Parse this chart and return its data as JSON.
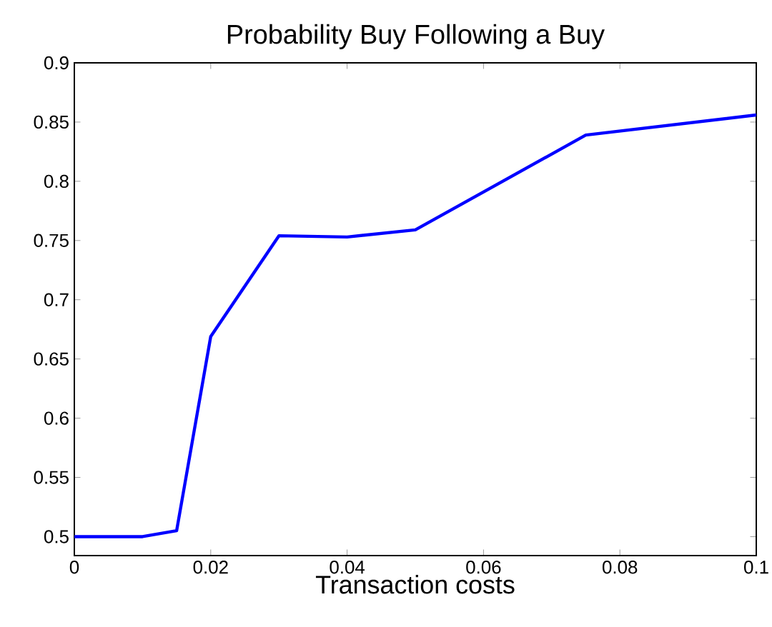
{
  "chart_data": {
    "type": "line",
    "title": "Probability Buy Following a Buy",
    "xlabel": "Transaction costs",
    "x": [
      0,
      0.01,
      0.015,
      0.02,
      0.03,
      0.04,
      0.05,
      0.075,
      0.1
    ],
    "series": [
      {
        "color": "#0000ff",
        "values": [
          0.5,
          0.5,
          0.505,
          0.669,
          0.754,
          0.753,
          0.759,
          0.839,
          0.856
        ]
      }
    ],
    "xlim": [
      0,
      0.1
    ],
    "ylim": [
      0.484,
      0.9
    ],
    "xticks": [
      0,
      0.02,
      0.04,
      0.06,
      0.08,
      0.1
    ],
    "yticks": [
      0.5,
      0.55,
      0.6,
      0.65,
      0.7,
      0.75,
      0.8,
      0.85,
      0.9
    ],
    "marker": "none",
    "line_style": "solid"
  }
}
